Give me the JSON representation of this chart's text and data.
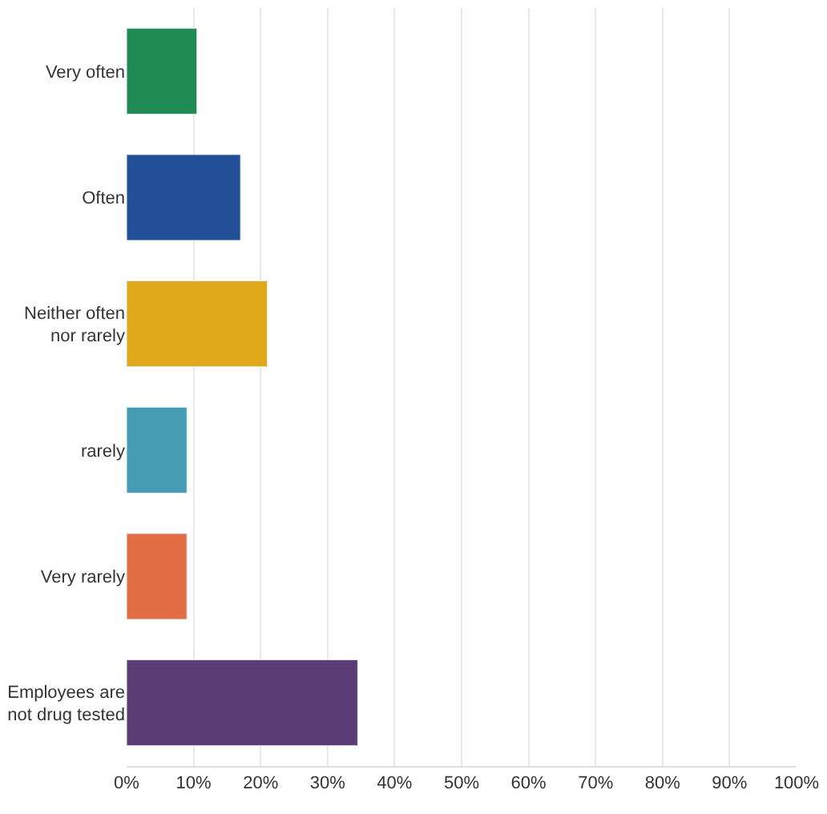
{
  "chart_data": {
    "type": "bar",
    "orientation": "horizontal",
    "categories": [
      "Very often",
      "Often",
      "Neither often nor rarely",
      "rarely",
      "Very rarely",
      "Employees are not drug tested"
    ],
    "values": [
      10.5,
      17,
      21,
      9,
      9,
      34.5
    ],
    "colors": [
      "#218b55",
      "#224f98",
      "#dea818",
      "#459db5",
      "#e46e43",
      "#5b3c75"
    ],
    "xlim": [
      0,
      100
    ],
    "xticks": [
      {
        "value": 0,
        "label": "0%"
      },
      {
        "value": 10,
        "label": "10%"
      },
      {
        "value": 20,
        "label": "20%"
      },
      {
        "value": 30,
        "label": "30%"
      },
      {
        "value": 40,
        "label": "40%"
      },
      {
        "value": 50,
        "label": "50%"
      },
      {
        "value": 60,
        "label": "60%"
      },
      {
        "value": 70,
        "label": "70%"
      },
      {
        "value": 80,
        "label": "80%"
      },
      {
        "value": 90,
        "label": "90%"
      },
      {
        "value": 100,
        "label": "100%"
      }
    ],
    "grid": "x"
  }
}
